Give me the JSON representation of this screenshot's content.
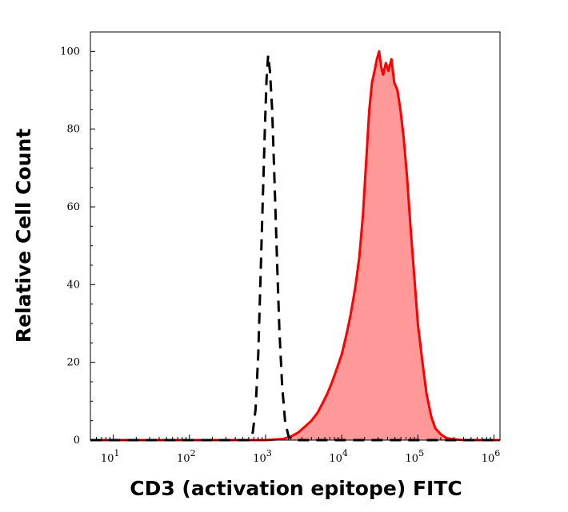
{
  "chart_data": {
    "type": "area",
    "title": "",
    "xlabel": "CD3 (activation epitope) FITC",
    "ylabel": "Relative Cell Count",
    "x_scale": "log",
    "xlim": [
      5,
      1200000
    ],
    "ylim": [
      0,
      105
    ],
    "x_ticks": [
      {
        "value": 10,
        "base": "10",
        "exp": "1"
      },
      {
        "value": 100,
        "base": "10",
        "exp": "2"
      },
      {
        "value": 1000,
        "base": "10",
        "exp": "3"
      },
      {
        "value": 10000,
        "base": "10",
        "exp": "4"
      },
      {
        "value": 100000,
        "base": "10",
        "exp": "5"
      },
      {
        "value": 1000000,
        "base": "10",
        "exp": "6"
      }
    ],
    "y_ticks": [
      0,
      20,
      40,
      60,
      80,
      100
    ],
    "grid": false,
    "legend": "none",
    "series": [
      {
        "color": "#ff0000",
        "fill": "#ff9999",
        "style": "solid-filled",
        "x": [
          5,
          1000,
          1700,
          2200,
          2700,
          3300,
          4000,
          4800,
          5600,
          6500,
          7500,
          8500,
          10000,
          11500,
          13000,
          15000,
          17000,
          19000,
          21000,
          23000,
          25000,
          27000,
          29000,
          31000,
          33000,
          35000,
          38000,
          41000,
          45000,
          49000,
          54000,
          59000,
          65000,
          72000,
          80000,
          90000,
          100000,
          115000,
          130000,
          150000,
          170000,
          200000,
          240000,
          300000,
          400000,
          1200000
        ],
        "y": [
          0,
          0,
          0.3,
          1,
          2,
          3.5,
          5,
          7,
          9.5,
          12,
          15,
          18,
          22,
          27,
          32,
          39,
          47,
          58,
          72,
          85,
          92,
          95,
          98,
          100,
          96,
          94,
          97,
          95,
          98,
          92,
          90,
          85,
          78,
          68,
          55,
          42,
          30,
          20,
          12,
          6,
          3,
          1.5,
          0.5,
          0.2,
          0,
          0
        ]
      },
      {
        "color": "#000000",
        "style": "dashed",
        "x": [
          5,
          600,
          680,
          740,
          800,
          860,
          920,
          980,
          1030,
          1080,
          1140,
          1220,
          1320,
          1420,
          1520,
          1650,
          1800,
          2000,
          2300,
          1200000
        ],
        "y": [
          0,
          0,
          2,
          8,
          22,
          42,
          62,
          80,
          93,
          99,
          95,
          85,
          65,
          45,
          28,
          14,
          5,
          1,
          0,
          0
        ]
      }
    ]
  }
}
